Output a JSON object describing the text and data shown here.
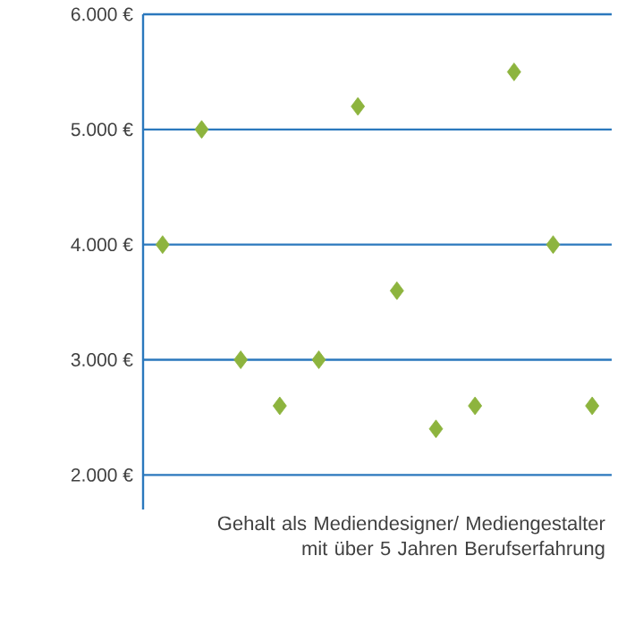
{
  "chart_data": {
    "type": "scatter",
    "xlabel": "Gehalt als Mediendesigner/ Mediengestalter mit über 5 Jahren Berufserfahrung",
    "categories": [
      null,
      null,
      null,
      null,
      null,
      null,
      null,
      null,
      null,
      null,
      null,
      null
    ],
    "series": [
      {
        "color": "#8db43e",
        "values": [
          4000,
          5000,
          3000,
          2600,
          3000,
          5200,
          3600,
          2400,
          2600,
          5500,
          4000,
          2600
        ]
      }
    ],
    "ylim": [
      1700,
      6000
    ],
    "yticks": [
      {
        "value": 2000,
        "label": "2.000 €"
      },
      {
        "value": 3000,
        "label": "3.000 €"
      },
      {
        "value": 4000,
        "label": "4.000 €"
      },
      {
        "value": 5000,
        "label": "5.000 €"
      },
      {
        "value": 6000,
        "label": "6.000 €"
      }
    ],
    "grid": "y",
    "marker": "diamond",
    "tick_labels": "y"
  }
}
